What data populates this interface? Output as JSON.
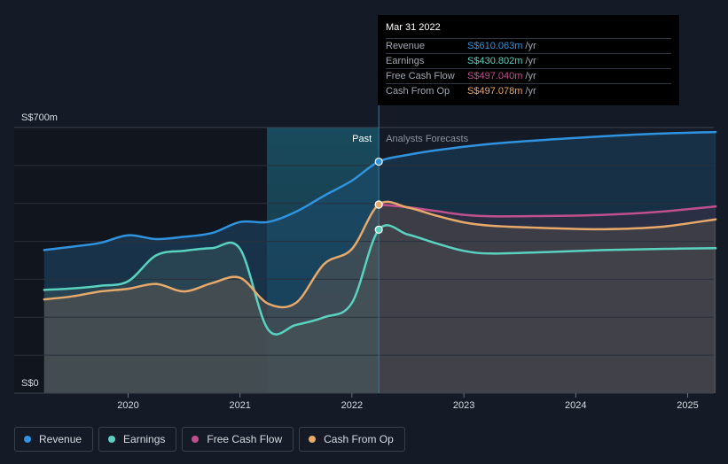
{
  "chart_data": {
    "type": "area",
    "x_ticks": [
      "2020",
      "2021",
      "2022",
      "2023",
      "2024",
      "2025"
    ],
    "y_tick_labels": [
      "S$0",
      "S$700m"
    ],
    "ylim": [
      0,
      700
    ],
    "divider_labels": {
      "past": "Past",
      "forecast": "Analysts Forecasts"
    },
    "divider_x": 2022.24,
    "shaded_region": [
      2021.24,
      2022.24
    ],
    "series": [
      {
        "name": "Revenue",
        "color": "#2f93e0",
        "points": [
          [
            2019.25,
            377
          ],
          [
            2019.5,
            386
          ],
          [
            2019.75,
            396
          ],
          [
            2020.0,
            416
          ],
          [
            2020.25,
            406
          ],
          [
            2020.5,
            412
          ],
          [
            2020.75,
            422
          ],
          [
            2021.0,
            451
          ],
          [
            2021.25,
            451
          ],
          [
            2021.5,
            478
          ],
          [
            2021.75,
            520
          ],
          [
            2022.0,
            560
          ],
          [
            2022.24,
            610.063
          ],
          [
            2022.5,
            628
          ],
          [
            2022.75,
            640
          ],
          [
            2023.25,
            657
          ],
          [
            2023.75,
            668
          ],
          [
            2024.25,
            677
          ],
          [
            2024.75,
            684
          ],
          [
            2025.25,
            688
          ]
        ]
      },
      {
        "name": "Earnings",
        "color": "#59d2c0",
        "points": [
          [
            2019.25,
            272
          ],
          [
            2019.5,
            276
          ],
          [
            2019.75,
            283
          ],
          [
            2020.0,
            295
          ],
          [
            2020.25,
            363
          ],
          [
            2020.5,
            375
          ],
          [
            2020.75,
            382
          ],
          [
            2021.0,
            380
          ],
          [
            2021.25,
            168
          ],
          [
            2021.5,
            180
          ],
          [
            2021.75,
            200
          ],
          [
            2022.0,
            238
          ],
          [
            2022.24,
            430.802
          ],
          [
            2022.5,
            418
          ],
          [
            2022.75,
            395
          ],
          [
            2023.0,
            375
          ],
          [
            2023.25,
            368
          ],
          [
            2023.75,
            372
          ],
          [
            2024.25,
            377
          ],
          [
            2024.75,
            380
          ],
          [
            2025.25,
            382
          ]
        ]
      },
      {
        "name": "Free Cash Flow",
        "color": "#c04f8e",
        "points": [
          [
            2022.24,
            497.04
          ],
          [
            2022.5,
            490
          ],
          [
            2022.75,
            480
          ],
          [
            2023.0,
            470
          ],
          [
            2023.25,
            466
          ],
          [
            2023.75,
            467
          ],
          [
            2024.25,
            470
          ],
          [
            2024.75,
            478
          ],
          [
            2025.25,
            492
          ]
        ]
      },
      {
        "name": "Cash From Op",
        "color": "#e7a96a",
        "points": [
          [
            2019.25,
            247
          ],
          [
            2019.5,
            255
          ],
          [
            2019.75,
            268
          ],
          [
            2020.0,
            275
          ],
          [
            2020.25,
            288
          ],
          [
            2020.5,
            268
          ],
          [
            2020.75,
            290
          ],
          [
            2021.0,
            304
          ],
          [
            2021.25,
            236
          ],
          [
            2021.5,
            238
          ],
          [
            2021.75,
            340
          ],
          [
            2022.0,
            380
          ],
          [
            2022.24,
            497.078
          ],
          [
            2022.5,
            489
          ],
          [
            2022.75,
            468
          ],
          [
            2023.0,
            450
          ],
          [
            2023.25,
            441
          ],
          [
            2023.75,
            435
          ],
          [
            2024.25,
            432
          ],
          [
            2024.75,
            438
          ],
          [
            2025.25,
            458
          ]
        ]
      }
    ],
    "tooltip": {
      "date": "Mar 31 2022",
      "rows": [
        {
          "label": "Revenue",
          "value": "S$610.063m",
          "unit": "/yr",
          "color": "#2f93e0"
        },
        {
          "label": "Earnings",
          "value": "S$430.802m",
          "unit": "/yr",
          "color": "#59d2c0"
        },
        {
          "label": "Free Cash Flow",
          "value": "S$497.040m",
          "unit": "/yr",
          "color": "#c04f8e"
        },
        {
          "label": "Cash From Op",
          "value": "S$497.078m",
          "unit": "/yr",
          "color": "#e7a96a"
        }
      ]
    }
  },
  "legend": [
    {
      "label": "Revenue",
      "color": "#2f93e0"
    },
    {
      "label": "Earnings",
      "color": "#59d2c0"
    },
    {
      "label": "Free Cash Flow",
      "color": "#c04f8e"
    },
    {
      "label": "Cash From Op",
      "color": "#e7a96a"
    }
  ]
}
